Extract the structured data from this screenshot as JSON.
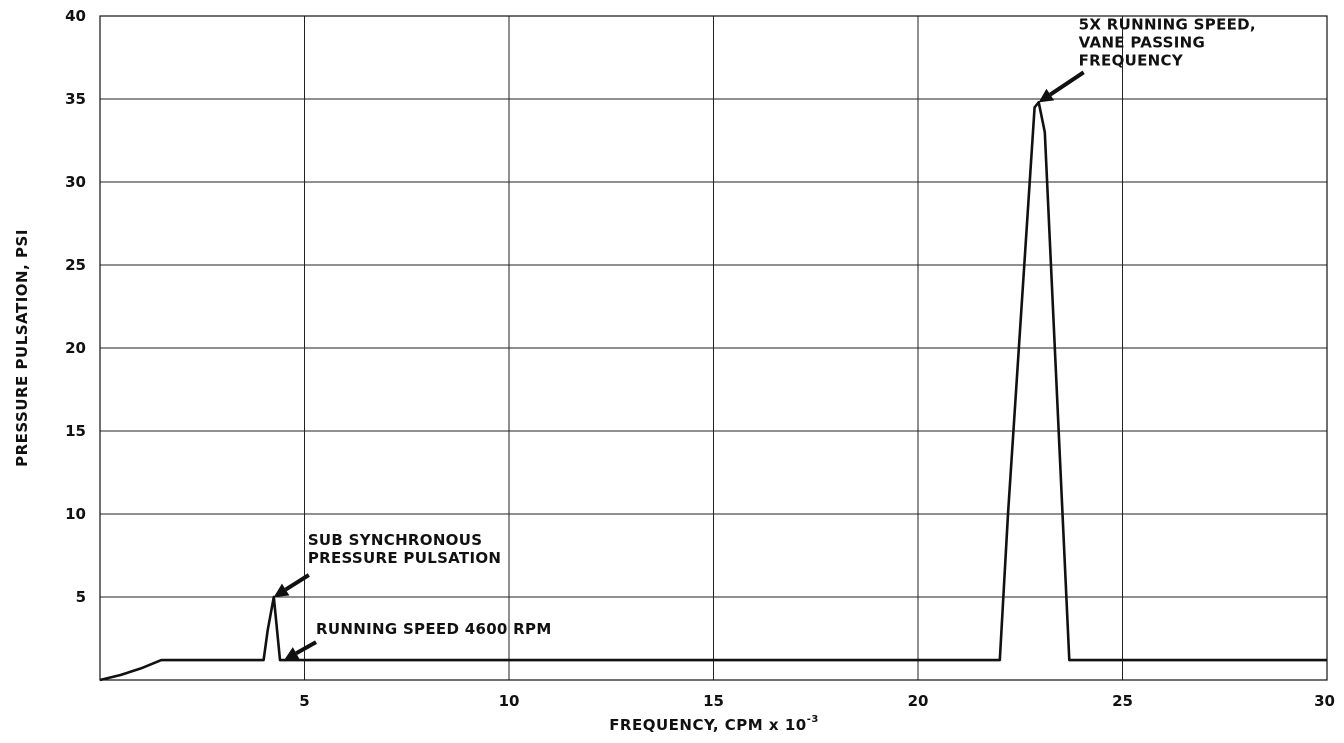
{
  "chart_data": {
    "type": "line",
    "title": "",
    "xlabel": "FREQUENCY, CPM x 10",
    "xlabel_exponent": "-3",
    "ylabel": "PRESSURE PULSATION, PSI",
    "xlim": [
      0,
      30
    ],
    "ylim": [
      0,
      40
    ],
    "x_ticks": [
      5,
      10,
      15,
      20,
      25,
      30
    ],
    "y_ticks": [
      5,
      10,
      15,
      20,
      25,
      30,
      35,
      40
    ],
    "grid": true,
    "series": [
      {
        "x": [
          0,
          0.5,
          1.0,
          1.5,
          4.0,
          4.1,
          4.25,
          4.4,
          4.6,
          22.0,
          22.2,
          22.85,
          22.95,
          23.1,
          23.7,
          30
        ],
        "y": [
          0,
          0.3,
          0.7,
          1.2,
          1.2,
          3.0,
          5.0,
          1.2,
          1.2,
          1.2,
          10.0,
          34.5,
          34.8,
          33.0,
          1.2,
          1.2
        ]
      }
    ],
    "annotations": [
      {
        "lines": [
          "5X RUNNING SPEED,",
          "VANE PASSING",
          "FREQUENCY"
        ],
        "x": 22.95,
        "y": 34.8
      },
      {
        "lines": [
          "SUB  SYNCHRONOUS",
          "PRESSURE PULSATION"
        ],
        "x": 4.25,
        "y": 5.0
      },
      {
        "lines": [
          "RUNNING SPEED  4600 RPM"
        ],
        "x": 4.5,
        "y": 1.2
      }
    ]
  }
}
